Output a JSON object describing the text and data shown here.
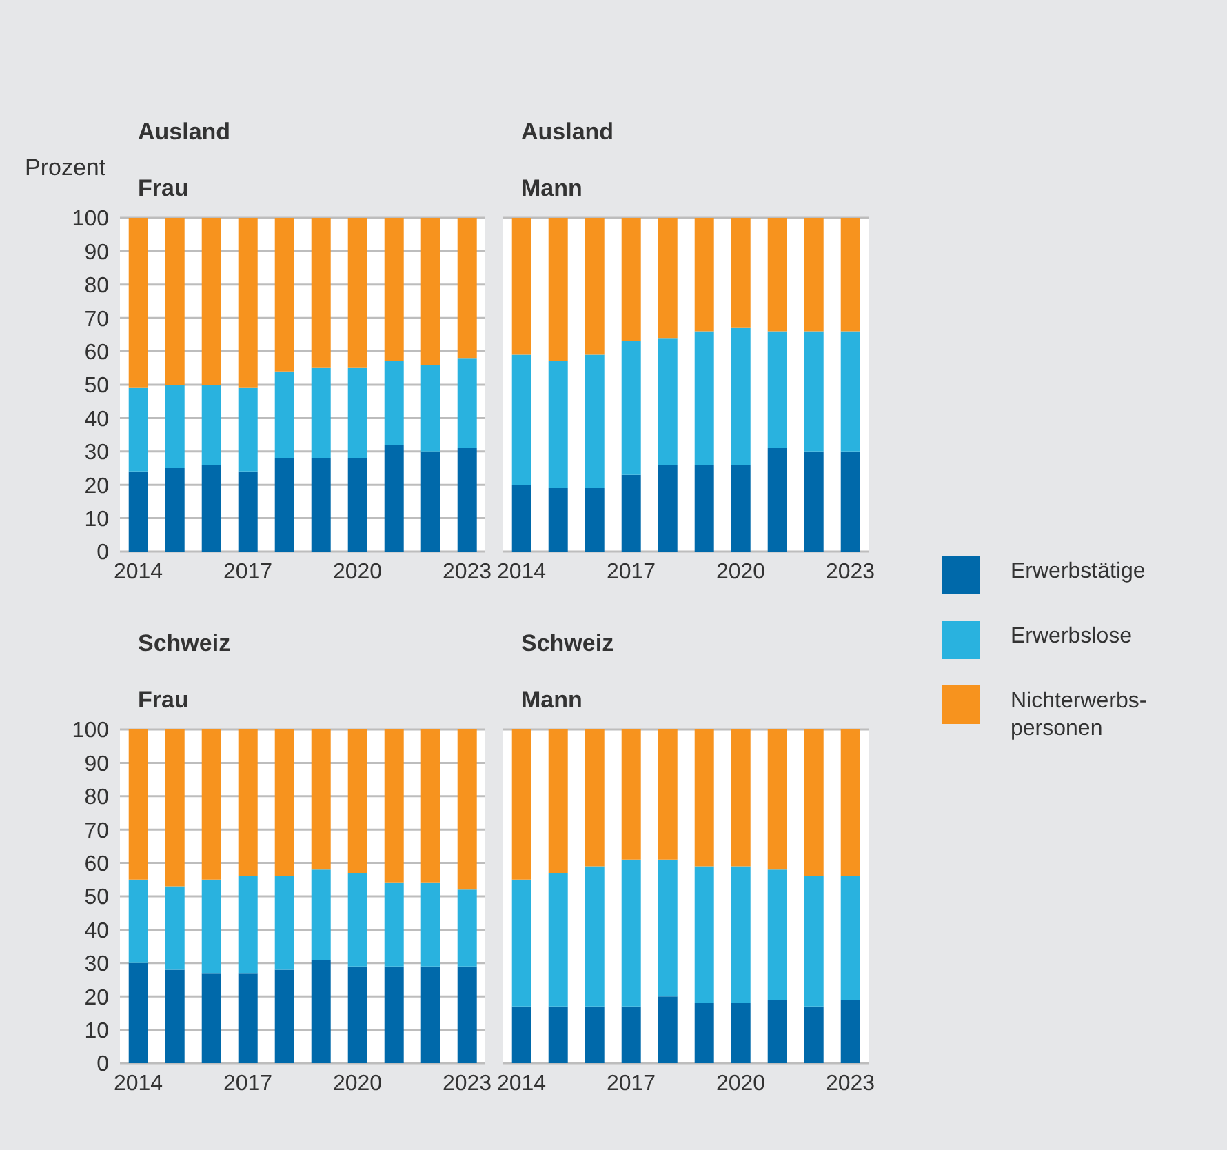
{
  "chart_data": [
    {
      "type": "bar",
      "title": "Ausland",
      "subtitle": "Frau",
      "ylabel": "Prozent",
      "categories": [
        "2014",
        null,
        null,
        "2017",
        null,
        null,
        "2020",
        null,
        null,
        "2023"
      ],
      "stacked": true,
      "ylim": [
        0,
        100
      ],
      "yticks": [
        0,
        10,
        20,
        30,
        40,
        50,
        60,
        70,
        80,
        90,
        100
      ],
      "grid": "y",
      "legend": false,
      "series": [
        {
          "color": "#0069aa",
          "values": [
            24,
            25,
            26,
            24,
            28,
            28,
            28,
            32,
            30,
            31
          ]
        },
        {
          "color": "#29b2df",
          "values": [
            25,
            25,
            24,
            25,
            26,
            27,
            27,
            25,
            26,
            27
          ]
        },
        {
          "color": "#f7931e",
          "values": [
            51,
            50,
            50,
            51,
            46,
            45,
            45,
            43,
            44,
            42
          ]
        }
      ]
    },
    {
      "type": "bar",
      "title": "Ausland",
      "subtitle": "Mann",
      "categories": [
        "2014",
        null,
        null,
        "2017",
        null,
        null,
        "2020",
        null,
        null,
        "2023"
      ],
      "stacked": true,
      "ylim": [
        0,
        100
      ],
      "yticks": [
        0,
        10,
        20,
        30,
        40,
        50,
        60,
        70,
        80,
        90,
        100
      ],
      "grid": "y",
      "tick_labels": "x",
      "legend": "right",
      "series": [
        {
          "name": "Erwerbstätige",
          "color": "#0069aa",
          "values": [
            20,
            19,
            19,
            23,
            26,
            26,
            26,
            31,
            30,
            30
          ]
        },
        {
          "name": "Erwerbslose",
          "color": "#29b2df",
          "values": [
            39,
            38,
            40,
            40,
            38,
            40,
            41,
            35,
            36,
            36
          ]
        },
        {
          "name": "Nichterwerbs-personen",
          "color": "#f7931e",
          "values": [
            41,
            43,
            41,
            37,
            36,
            34,
            33,
            34,
            34,
            34
          ]
        }
      ]
    },
    {
      "type": "bar",
      "title": "Schweiz",
      "subtitle": "Frau",
      "categories": [
        "2014",
        null,
        null,
        "2017",
        null,
        null,
        "2020",
        null,
        null,
        "2023"
      ],
      "stacked": true,
      "ylim": [
        0,
        100
      ],
      "yticks": [
        0,
        10,
        20,
        30,
        40,
        50,
        60,
        70,
        80,
        90,
        100
      ],
      "grid": "y",
      "legend": false,
      "series": [
        {
          "color": "#0069aa",
          "values": [
            30,
            28,
            27,
            27,
            28,
            31,
            29,
            29,
            29,
            29
          ]
        },
        {
          "color": "#29b2df",
          "values": [
            25,
            25,
            28,
            29,
            28,
            27,
            28,
            25,
            25,
            23
          ]
        },
        {
          "color": "#f7931e",
          "values": [
            45,
            47,
            45,
            44,
            44,
            42,
            43,
            46,
            46,
            48
          ]
        }
      ]
    },
    {
      "type": "bar",
      "title": "Schweiz",
      "subtitle": "Mann",
      "categories": [
        "2014",
        null,
        null,
        "2017",
        null,
        null,
        "2020",
        null,
        null,
        "2023"
      ],
      "stacked": true,
      "ylim": [
        0,
        100
      ],
      "yticks": [
        0,
        10,
        20,
        30,
        40,
        50,
        60,
        70,
        80,
        90,
        100
      ],
      "grid": "y",
      "tick_labels": "x",
      "legend": false,
      "series": [
        {
          "color": "#0069aa",
          "values": [
            17,
            17,
            17,
            17,
            20,
            18,
            18,
            19,
            17,
            19
          ]
        },
        {
          "color": "#29b2df",
          "values": [
            38,
            40,
            42,
            44,
            41,
            41,
            41,
            39,
            39,
            37
          ]
        },
        {
          "color": "#f7931e",
          "values": [
            45,
            43,
            41,
            39,
            39,
            41,
            41,
            42,
            44,
            44
          ]
        }
      ]
    }
  ]
}
